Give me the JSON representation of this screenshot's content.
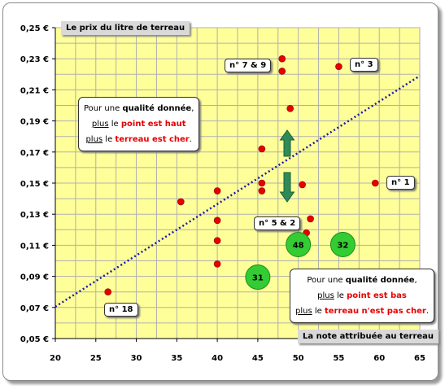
{
  "chart_data": {
    "type": "scatter",
    "title": "Le prix du litre de terreau",
    "xlabel": "La note attribuée au terreau",
    "xlim": [
      20,
      65
    ],
    "ylim": [
      0.05,
      0.25
    ],
    "x_ticks": [
      "20",
      "25",
      "30",
      "35",
      "40",
      "45",
      "50",
      "55",
      "60",
      "65"
    ],
    "y_ticks": [
      "0,05 €",
      "0,07 €",
      "0,09 €",
      "0,11 €",
      "0,13 €",
      "0,15 €",
      "0,17 €",
      "0,19 €",
      "0,21 €",
      "0,23 €",
      "0,25 €"
    ],
    "points": [
      {
        "x": 26.5,
        "y": 0.08
      },
      {
        "x": 35.5,
        "y": 0.138
      },
      {
        "x": 40,
        "y": 0.145
      },
      {
        "x": 40,
        "y": 0.126
      },
      {
        "x": 40,
        "y": 0.113
      },
      {
        "x": 40,
        "y": 0.098
      },
      {
        "x": 45.5,
        "y": 0.172
      },
      {
        "x": 45.5,
        "y": 0.15
      },
      {
        "x": 45.5,
        "y": 0.145
      },
      {
        "x": 48,
        "y": 0.23
      },
      {
        "x": 48,
        "y": 0.222
      },
      {
        "x": 49,
        "y": 0.198
      },
      {
        "x": 50.5,
        "y": 0.149
      },
      {
        "x": 51,
        "y": 0.118
      },
      {
        "x": 51.5,
        "y": 0.127
      },
      {
        "x": 55,
        "y": 0.225
      },
      {
        "x": 59.5,
        "y": 0.15
      }
    ],
    "bubbles": [
      {
        "x": 45,
        "y": 0.0895,
        "label": "31"
      },
      {
        "x": 50,
        "y": 0.1105,
        "label": "48"
      },
      {
        "x": 55.5,
        "y": 0.1105,
        "label": "32"
      }
    ],
    "trendline": [
      {
        "x": 20,
        "y": 0.0705
      },
      {
        "x": 65,
        "y": 0.219
      }
    ],
    "colors": {
      "plot_bg": "#ffff99",
      "grid": "#b0b0b0",
      "points": "#e60000",
      "bubbles": "#33cc33",
      "trend": "#1a1aa6",
      "arrow": "#2e8b57"
    },
    "tags": {
      "n18": "n° 18",
      "n1": "n° 1",
      "n3": "n° 3",
      "n79": "n° 7 & 9",
      "n52": "n° 5 & 2"
    },
    "note_top": {
      "line1_a": "Pour une ",
      "line1_b": "qualité donnée",
      "line1_c": ",",
      "line2_a": "plus",
      "line2_b": " le ",
      "line2_c": "point est haut",
      "line3_a": "plus",
      "line3_b": " le ",
      "line3_c": "terreau est cher",
      "line3_d": "."
    },
    "note_bottom": {
      "line1_a": "Pour une ",
      "line1_b": "qualité donnée",
      "line1_c": ",",
      "line2_a": "plus",
      "line2_b": " le ",
      "line2_c": "point est bas",
      "line3_a": "plus",
      "line3_b": " le ",
      "line3_c": "terreau n'est pas cher",
      "line3_d": "."
    }
  }
}
